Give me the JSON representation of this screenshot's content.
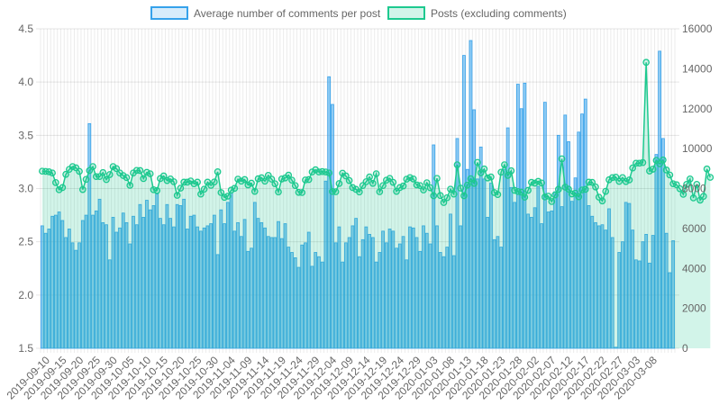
{
  "chart_data": {
    "type": "bar",
    "legend": {
      "position": "top-center",
      "items": [
        {
          "label": "Average number of comments per post",
          "color": "#36a2eb",
          "fill": "rgba(54,162,235,0.2)"
        },
        {
          "label": "Posts (excluding comments)",
          "color": "#1dc98f",
          "fill": "rgba(29,201,143,0.2)"
        }
      ]
    },
    "x": {
      "start_date": "2019-09-10",
      "end_date": "2020-03-09",
      "tick_labels": [
        "2019-09-10",
        "2019-09-15",
        "2019-09-20",
        "2019-09-25",
        "2019-09-30",
        "2019-10-05",
        "2019-10-10",
        "2019-10-15",
        "2019-10-20",
        "2019-10-25",
        "2019-10-30",
        "2019-11-04",
        "2019-11-09",
        "2019-11-14",
        "2019-11-19",
        "2019-11-24",
        "2019-11-29",
        "2019-12-04",
        "2019-12-09",
        "2019-12-14",
        "2019-12-19",
        "2019-12-24",
        "2019-12-29",
        "2020-01-03",
        "2020-01-08",
        "2020-01-13",
        "2020-01-18",
        "2020-01-23",
        "2020-01-28",
        "2020-02-02",
        "2020-02-07",
        "2020-02-12",
        "2020-02-17",
        "2020-02-22",
        "2020-02-27",
        "2020-03-03",
        "2020-03-08"
      ]
    },
    "y_left": {
      "min": 1.5,
      "max": 4.5,
      "ticks": [
        "1.5",
        "2.0",
        "2.5",
        "3.0",
        "3.5",
        "4.0",
        "4.5"
      ],
      "values": [
        1.5,
        2.0,
        2.5,
        3.0,
        3.5,
        4.0,
        4.5
      ]
    },
    "y_right": {
      "min": 0,
      "max": 16000,
      "ticks": [
        "0",
        "2000",
        "4000",
        "6000",
        "8000",
        "10000",
        "12000",
        "14000",
        "16000"
      ],
      "values": [
        0,
        2000,
        4000,
        6000,
        8000,
        10000,
        12000,
        14000,
        16000
      ]
    },
    "grid": true,
    "series": [
      {
        "name": "Average number of comments per post",
        "type": "bar",
        "axis": "left",
        "values": [
          2.65,
          2.58,
          2.62,
          2.74,
          2.75,
          2.78,
          2.7,
          2.54,
          2.62,
          2.49,
          2.42,
          2.49,
          2.7,
          2.75,
          3.61,
          2.75,
          2.79,
          2.9,
          2.68,
          2.66,
          2.33,
          2.73,
          2.59,
          2.63,
          2.77,
          2.68,
          2.48,
          2.74,
          2.66,
          2.85,
          2.73,
          2.89,
          2.8,
          2.84,
          2.95,
          2.72,
          2.66,
          2.85,
          2.72,
          2.64,
          2.85,
          2.84,
          2.9,
          2.62,
          2.74,
          2.75,
          2.64,
          2.6,
          2.63,
          2.65,
          2.67,
          2.75,
          2.38,
          2.8,
          2.67,
          2.87,
          2.96,
          2.6,
          2.68,
          2.55,
          2.71,
          2.41,
          2.44,
          2.87,
          2.72,
          2.68,
          2.63,
          2.55,
          2.54,
          2.54,
          2.69,
          2.53,
          2.67,
          2.45,
          2.4,
          2.35,
          2.26,
          2.47,
          2.49,
          2.59,
          2.27,
          2.4,
          2.36,
          2.31,
          3.07,
          4.05,
          3.79,
          2.49,
          2.64,
          2.31,
          2.49,
          2.54,
          2.65,
          2.72,
          2.36,
          2.52,
          2.64,
          2.57,
          2.54,
          2.31,
          2.4,
          2.6,
          2.49,
          2.62,
          2.6,
          2.44,
          2.48,
          2.55,
          2.33,
          2.64,
          2.63,
          2.54,
          2.41,
          2.65,
          2.58,
          2.48,
          3.41,
          2.65,
          2.4,
          2.36,
          2.45,
          2.76,
          2.37,
          3.47,
          2.65,
          4.25,
          3.18,
          4.39,
          3.74,
          3.09,
          3.39,
          3.09,
          2.73,
          3.05,
          2.52,
          2.55,
          2.45,
          3.18,
          3.57,
          3.01,
          2.87,
          3.98,
          3.75,
          3.99,
          2.76,
          2.73,
          2.82,
          3.02,
          2.67,
          3.81,
          2.78,
          2.79,
          2.97,
          3.5,
          2.83,
          3.69,
          3.44,
          2.88,
          3.1,
          3.53,
          3.7,
          3.84,
          2.84,
          2.74,
          2.68,
          2.65,
          2.66,
          2.61,
          2.81,
          2.54,
          1.51,
          2.4,
          2.5,
          2.87,
          2.86,
          2.61,
          2.33,
          2.32,
          2.5,
          2.57,
          2.3,
          2.56,
          3.32,
          4.29,
          3.47,
          2.58,
          2.21,
          2.51
        ]
      },
      {
        "name": "Posts (excluding comments)",
        "type": "line",
        "axis": "right",
        "values": [
          8870,
          8860,
          8840,
          8780,
          8300,
          7940,
          8050,
          8710,
          8960,
          9100,
          9040,
          8860,
          7950,
          8460,
          8900,
          9100,
          8600,
          8600,
          8800,
          8450,
          8700,
          9100,
          9000,
          8780,
          8650,
          8550,
          8160,
          8780,
          8910,
          8900,
          8500,
          8810,
          8740,
          7940,
          7900,
          8500,
          8630,
          8400,
          8480,
          8340,
          7660,
          8020,
          8320,
          8320,
          8380,
          8240,
          8320,
          7720,
          7970,
          8320,
          8160,
          8330,
          8840,
          7800,
          7560,
          7620,
          7920,
          8010,
          8470,
          8370,
          8450,
          8180,
          8270,
          7860,
          8490,
          8540,
          8370,
          8660,
          8470,
          8240,
          7830,
          8480,
          8530,
          8670,
          8420,
          8150,
          7810,
          7800,
          8430,
          8450,
          8830,
          8940,
          8830,
          8850,
          8830,
          8780,
          7850,
          7840,
          8250,
          8770,
          8630,
          8400,
          8050,
          7960,
          7830,
          8150,
          8340,
          8580,
          8260,
          8740,
          7840,
          8150,
          8420,
          8510,
          8310,
          7860,
          8050,
          8130,
          8470,
          8550,
          8480,
          8180,
          8150,
          7930,
          8290,
          8040,
          7640,
          8510,
          7650,
          7300,
          7540,
          7970,
          7720,
          9190,
          8020,
          7640,
          8170,
          8490,
          8260,
          9310,
          8790,
          8980,
          8530,
          8580,
          7800,
          7700,
          8820,
          9190,
          8660,
          8890,
          7910,
          7850,
          7820,
          7570,
          7910,
          8310,
          8270,
          8360,
          8280,
          7580,
          7620,
          7350,
          7680,
          7960,
          9490,
          8070,
          7970,
          7730,
          7770,
          7590,
          7930,
          7960,
          8320,
          8310,
          8080,
          7570,
          7380,
          7860,
          8440,
          8550,
          8570,
          8360,
          8550,
          8350,
          8430,
          9030,
          9270,
          9270,
          9300,
          14320,
          8880,
          8970,
          9410,
          9240,
          9430,
          8930,
          8680,
          8240,
          8190,
          7990,
          7710,
          8210,
          8480,
          7530,
          8210,
          7420,
          7610,
          8980,
          8560
        ]
      }
    ]
  }
}
